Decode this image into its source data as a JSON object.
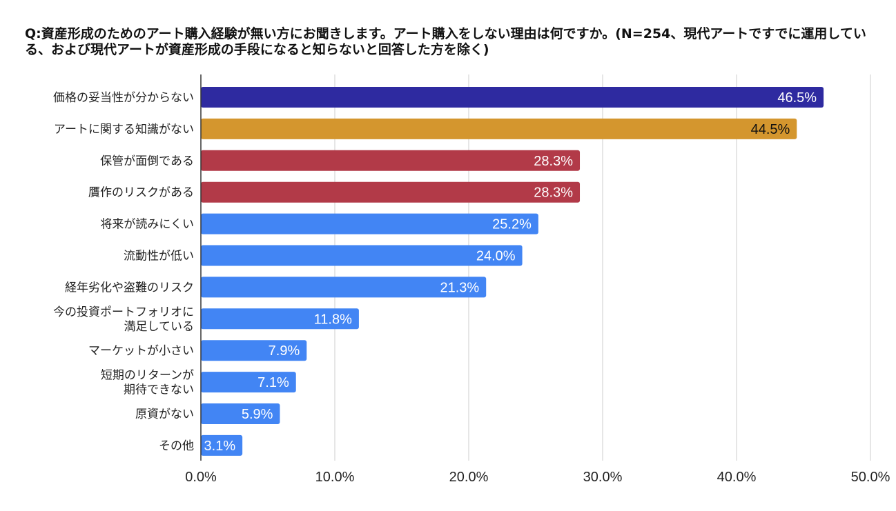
{
  "chart_data": {
    "type": "bar",
    "orientation": "horizontal",
    "title": "Q:資産形成のためのアート購入経験が無い方にお聞きします。アート購入をしない理由は何ですか。(N=254、現代アートですでに運用している、および現代アートが資産形成の手段になると知らないと回答した方を除く)",
    "categories": [
      [
        "価格の妥当性が分からない"
      ],
      [
        "アートに関する知識がない"
      ],
      [
        "保管が面倒である"
      ],
      [
        "贋作のリスクがある"
      ],
      [
        "将来が読みにくい"
      ],
      [
        "流動性が低い"
      ],
      [
        "経年劣化や盗難のリスク"
      ],
      [
        "今の投資ポートフォリオに",
        "満足している"
      ],
      [
        "マーケットが小さい"
      ],
      [
        "短期のリターンが",
        "期待できない"
      ],
      [
        "原資がない"
      ],
      [
        "その他"
      ]
    ],
    "values": [
      46.5,
      44.5,
      28.3,
      28.3,
      25.2,
      24.0,
      21.3,
      11.8,
      7.9,
      7.1,
      5.9,
      3.1
    ],
    "data_labels": [
      "46.5%",
      "44.5%",
      "28.3%",
      "28.3%",
      "25.2%",
      "24.0%",
      "21.3%",
      "11.8%",
      "7.9%",
      "7.1%",
      "5.9%",
      "3.1%"
    ],
    "bar_colors": [
      "#2e2aa0",
      "#d4962e",
      "#b23a48",
      "#b23a48",
      "#4285f4",
      "#4285f4",
      "#4285f4",
      "#4285f4",
      "#4285f4",
      "#4285f4",
      "#4285f4",
      "#4285f4"
    ],
    "label_colors": [
      "#ffffff",
      "#111111",
      "#ffffff",
      "#ffffff",
      "#ffffff",
      "#ffffff",
      "#ffffff",
      "#ffffff",
      "#ffffff",
      "#ffffff",
      "#ffffff",
      "#ffffff"
    ],
    "xlim": [
      0,
      50
    ],
    "xticks": [
      0,
      10,
      20,
      30,
      40,
      50
    ],
    "xtick_labels": [
      "0.0%",
      "10.0%",
      "20.0%",
      "30.0%",
      "40.0%",
      "50.0%"
    ],
    "grid": true,
    "legend": "none"
  }
}
